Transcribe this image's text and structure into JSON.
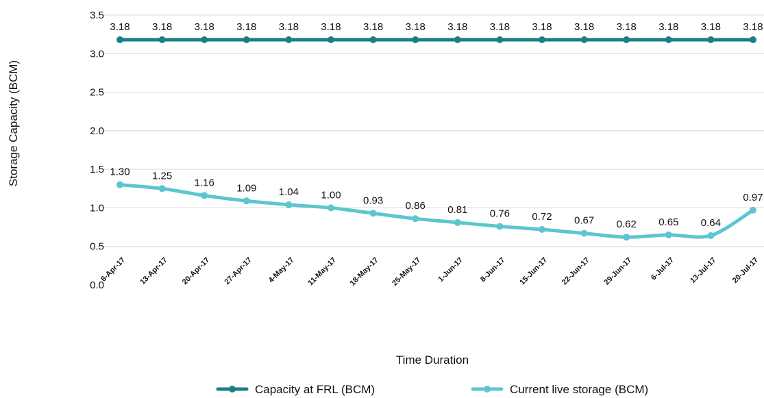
{
  "chart_data": {
    "type": "line",
    "title": "",
    "xlabel": "Time Duration",
    "ylabel": "Storage Capacity (BCM)",
    "ylim": [
      0,
      3.5
    ],
    "yticks": [
      "0.0",
      "0.5",
      "1.0",
      "1.5",
      "2.0",
      "2.5",
      "3.0",
      "3.5"
    ],
    "grid": "horizontal",
    "legend_position": "bottom",
    "categories": [
      "6-Apr-17",
      "13-Apr-17",
      "20-Apr-17",
      "27-Apr-17",
      "4-May-17",
      "11-May-17",
      "18-May-17",
      "25-May-17",
      "1-Jun-17",
      "8-Jun-17",
      "15-Jun-17",
      "22-Jun-17",
      "29-Jun-17",
      "6-Jul-17",
      "13-Jul-17",
      "20-Jul-17"
    ],
    "series": [
      {
        "name": "Capacity at FRL (BCM)",
        "color": "#1a7f86",
        "values": [
          3.18,
          3.18,
          3.18,
          3.18,
          3.18,
          3.18,
          3.18,
          3.18,
          3.18,
          3.18,
          3.18,
          3.18,
          3.18,
          3.18,
          3.18,
          3.18
        ],
        "labels": [
          "3.18",
          "3.18",
          "3.18",
          "3.18",
          "3.18",
          "3.18",
          "3.18",
          "3.18",
          "3.18",
          "3.18",
          "3.18",
          "3.18",
          "3.18",
          "3.18",
          "3.18",
          "3.18"
        ]
      },
      {
        "name": "Current live storage (BCM)",
        "color": "#5cc6cf",
        "values": [
          1.3,
          1.25,
          1.16,
          1.09,
          1.04,
          1.0,
          0.93,
          0.86,
          0.81,
          0.76,
          0.72,
          0.67,
          0.62,
          0.65,
          0.64,
          0.97
        ],
        "labels": [
          "1.30",
          "1.25",
          "1.16",
          "1.09",
          "1.04",
          "1.00",
          "0.93",
          "0.86",
          "0.81",
          "0.76",
          "0.72",
          "0.67",
          "0.62",
          "0.65",
          "0.64",
          "0.97"
        ]
      }
    ]
  }
}
